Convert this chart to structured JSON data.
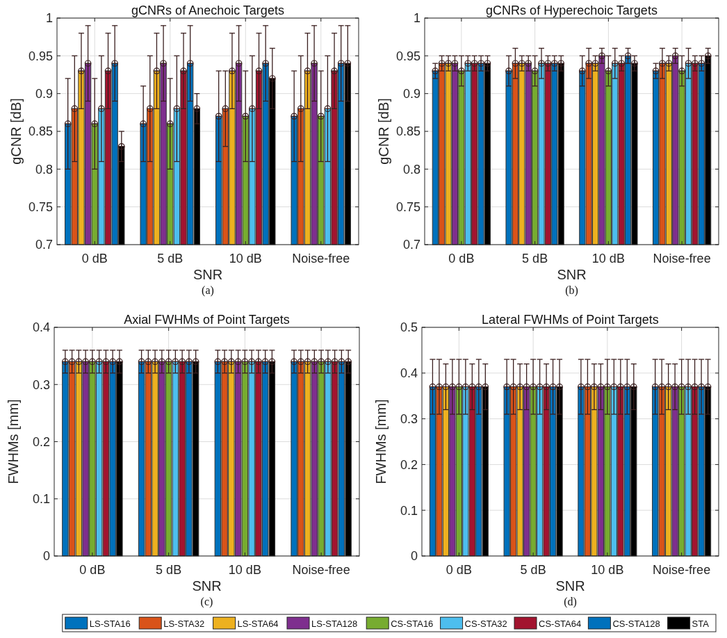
{
  "chart_data": [
    {
      "type": "bar",
      "title": "gCNRs of Anechoic Targets",
      "xlabel": "SNR",
      "ylabel": "gCNR [dB]",
      "annotations": [
        "(a)"
      ],
      "categories": [
        "0 dB",
        "5 dB",
        "10 dB",
        "Noise-free"
      ],
      "ylim": [
        0.7,
        1
      ],
      "yticks": [
        0.7,
        0.75,
        0.8,
        0.85,
        0.9,
        0.95,
        1
      ],
      "grid": true,
      "legend": "bottom",
      "marker": "circle",
      "series": [
        {
          "name": "LS-STA16",
          "color": "#0072bd",
          "values": [
            0.86,
            0.86,
            0.87,
            0.87
          ],
          "errors": [
            [
              0.8,
              0.92
            ],
            [
              0.81,
              0.91
            ],
            [
              0.81,
              0.93
            ],
            [
              0.81,
              0.93
            ]
          ]
        },
        {
          "name": "LS-STA32",
          "color": "#d95319",
          "values": [
            0.88,
            0.88,
            0.88,
            0.88
          ],
          "errors": [
            [
              0.81,
              0.95
            ],
            [
              0.81,
              0.95
            ],
            [
              0.83,
              0.93
            ],
            [
              0.81,
              0.95
            ]
          ]
        },
        {
          "name": "LS-STA64",
          "color": "#edb120",
          "values": [
            0.93,
            0.93,
            0.93,
            0.93
          ],
          "errors": [
            [
              0.88,
              0.98
            ],
            [
              0.88,
              0.98
            ],
            [
              0.88,
              0.98
            ],
            [
              0.88,
              0.98
            ]
          ]
        },
        {
          "name": "LS-STA128",
          "color": "#7e2f8e",
          "values": [
            0.94,
            0.94,
            0.94,
            0.94
          ],
          "errors": [
            [
              0.89,
              0.99
            ],
            [
              0.89,
              0.99
            ],
            [
              0.89,
              0.99
            ],
            [
              0.89,
              0.99
            ]
          ]
        },
        {
          "name": "CS-STA16",
          "color": "#77ac30",
          "values": [
            0.86,
            0.86,
            0.87,
            0.87
          ],
          "errors": [
            [
              0.8,
              0.92
            ],
            [
              0.8,
              0.92
            ],
            [
              0.81,
              0.93
            ],
            [
              0.81,
              0.93
            ]
          ]
        },
        {
          "name": "CS-STA32",
          "color": "#4dbeee",
          "values": [
            0.88,
            0.88,
            0.88,
            0.88
          ],
          "errors": [
            [
              0.81,
              0.95
            ],
            [
              0.81,
              0.95
            ],
            [
              0.81,
              0.95
            ],
            [
              0.81,
              0.95
            ]
          ]
        },
        {
          "name": "CS-STA64",
          "color": "#a2142f",
          "values": [
            0.93,
            0.93,
            0.93,
            0.93
          ],
          "errors": [
            [
              0.88,
              0.98
            ],
            [
              0.88,
              0.98
            ],
            [
              0.88,
              0.98
            ],
            [
              0.88,
              0.98
            ]
          ]
        },
        {
          "name": "CS-STA128",
          "color": "#0071bc",
          "values": [
            0.94,
            0.94,
            0.94,
            0.94
          ],
          "errors": [
            [
              0.89,
              0.99
            ],
            [
              0.89,
              0.99
            ],
            [
              0.89,
              0.99
            ],
            [
              0.89,
              0.99
            ]
          ]
        },
        {
          "name": "STA",
          "color": "#000000",
          "values": [
            0.83,
            0.88,
            0.92,
            0.94
          ],
          "errors": [
            [
              0.81,
              0.85
            ],
            [
              0.86,
              0.9
            ],
            [
              0.88,
              0.96
            ],
            [
              0.89,
              0.99
            ]
          ]
        }
      ]
    },
    {
      "type": "bar",
      "title": "gCNRs of Hyperechoic Targets",
      "xlabel": "SNR",
      "ylabel": "gCNR [dB]",
      "annotations": [
        "(b)"
      ],
      "categories": [
        "0 dB",
        "5 dB",
        "10 dB",
        "Noise-free"
      ],
      "ylim": [
        0.7,
        1
      ],
      "yticks": [
        0.7,
        0.75,
        0.8,
        0.85,
        0.9,
        0.95,
        1
      ],
      "grid": true,
      "legend": "bottom",
      "marker": "circle",
      "series": [
        {
          "name": "LS-STA16",
          "color": "#0072bd",
          "values": [
            0.93,
            0.93,
            0.93,
            0.93
          ],
          "errors": [
            [
              0.92,
              0.94
            ],
            [
              0.91,
              0.95
            ],
            [
              0.91,
              0.95
            ],
            [
              0.92,
              0.94
            ]
          ]
        },
        {
          "name": "LS-STA32",
          "color": "#d95319",
          "values": [
            0.94,
            0.94,
            0.94,
            0.94
          ],
          "errors": [
            [
              0.93,
              0.95
            ],
            [
              0.92,
              0.96
            ],
            [
              0.92,
              0.96
            ],
            [
              0.92,
              0.96
            ]
          ]
        },
        {
          "name": "LS-STA64",
          "color": "#edb120",
          "values": [
            0.94,
            0.94,
            0.94,
            0.94
          ],
          "errors": [
            [
              0.93,
              0.95
            ],
            [
              0.93,
              0.95
            ],
            [
              0.93,
              0.95
            ],
            [
              0.93,
              0.95
            ]
          ]
        },
        {
          "name": "LS-STA128",
          "color": "#7e2f8e",
          "values": [
            0.94,
            0.94,
            0.95,
            0.95
          ],
          "errors": [
            [
              0.93,
              0.95
            ],
            [
              0.93,
              0.95
            ],
            [
              0.94,
              0.96
            ],
            [
              0.94,
              0.96
            ]
          ]
        },
        {
          "name": "CS-STA16",
          "color": "#77ac30",
          "values": [
            0.93,
            0.93,
            0.93,
            0.93
          ],
          "errors": [
            [
              0.91,
              0.95
            ],
            [
              0.91,
              0.95
            ],
            [
              0.91,
              0.95
            ],
            [
              0.91,
              0.95
            ]
          ]
        },
        {
          "name": "CS-STA32",
          "color": "#4dbeee",
          "values": [
            0.94,
            0.94,
            0.94,
            0.94
          ],
          "errors": [
            [
              0.93,
              0.95
            ],
            [
              0.92,
              0.96
            ],
            [
              0.92,
              0.96
            ],
            [
              0.92,
              0.96
            ]
          ]
        },
        {
          "name": "CS-STA64",
          "color": "#a2142f",
          "values": [
            0.94,
            0.94,
            0.94,
            0.94
          ],
          "errors": [
            [
              0.93,
              0.95
            ],
            [
              0.93,
              0.95
            ],
            [
              0.93,
              0.95
            ],
            [
              0.93,
              0.95
            ]
          ]
        },
        {
          "name": "CS-STA128",
          "color": "#0071bc",
          "values": [
            0.94,
            0.94,
            0.95,
            0.94
          ],
          "errors": [
            [
              0.93,
              0.95
            ],
            [
              0.93,
              0.95
            ],
            [
              0.94,
              0.96
            ],
            [
              0.93,
              0.95
            ]
          ]
        },
        {
          "name": "STA",
          "color": "#000000",
          "values": [
            0.94,
            0.94,
            0.94,
            0.95
          ],
          "errors": [
            [
              0.93,
              0.95
            ],
            [
              0.93,
              0.95
            ],
            [
              0.93,
              0.95
            ],
            [
              0.94,
              0.96
            ]
          ]
        }
      ]
    },
    {
      "type": "bar",
      "title": "Axial FWHMs of Point Targets",
      "xlabel": "SNR",
      "ylabel": "FWHMs [mm]",
      "annotations": [
        "(c)"
      ],
      "categories": [
        "0 dB",
        "5 dB",
        "10 dB",
        "Noise-free"
      ],
      "ylim": [
        0,
        0.4
      ],
      "yticks": [
        0,
        0.1,
        0.2,
        0.3,
        0.4
      ],
      "grid": true,
      "legend": "bottom",
      "marker": "circle",
      "series": [
        {
          "name": "LS-STA16",
          "color": "#0072bd",
          "values": [
            0.34,
            0.34,
            0.34,
            0.34
          ],
          "errors": [
            0.02,
            0.02,
            0.02,
            0.02
          ]
        },
        {
          "name": "LS-STA32",
          "color": "#d95319",
          "values": [
            0.34,
            0.34,
            0.34,
            0.34
          ],
          "errors": [
            0.02,
            0.02,
            0.02,
            0.02
          ]
        },
        {
          "name": "LS-STA64",
          "color": "#edb120",
          "values": [
            0.34,
            0.34,
            0.34,
            0.34
          ],
          "errors": [
            0.02,
            0.02,
            0.02,
            0.02
          ]
        },
        {
          "name": "LS-STA128",
          "color": "#7e2f8e",
          "values": [
            0.34,
            0.34,
            0.34,
            0.34
          ],
          "errors": [
            0.02,
            0.02,
            0.02,
            0.02
          ]
        },
        {
          "name": "CS-STA16",
          "color": "#77ac30",
          "values": [
            0.34,
            0.34,
            0.34,
            0.34
          ],
          "errors": [
            0.02,
            0.02,
            0.02,
            0.02
          ]
        },
        {
          "name": "CS-STA32",
          "color": "#4dbeee",
          "values": [
            0.34,
            0.34,
            0.34,
            0.34
          ],
          "errors": [
            0.02,
            0.02,
            0.02,
            0.02
          ]
        },
        {
          "name": "CS-STA64",
          "color": "#a2142f",
          "values": [
            0.34,
            0.34,
            0.34,
            0.34
          ],
          "errors": [
            0.02,
            0.02,
            0.02,
            0.02
          ]
        },
        {
          "name": "CS-STA128",
          "color": "#0071bc",
          "values": [
            0.34,
            0.34,
            0.34,
            0.34
          ],
          "errors": [
            0.02,
            0.02,
            0.02,
            0.02
          ]
        },
        {
          "name": "STA",
          "color": "#000000",
          "values": [
            0.34,
            0.34,
            0.34,
            0.34
          ],
          "errors": [
            0.02,
            0.02,
            0.02,
            0.02
          ]
        }
      ]
    },
    {
      "type": "bar",
      "title": "Lateral FWHMs of Point Targets",
      "xlabel": "SNR",
      "ylabel": "FWHMs [mm]",
      "annotations": [
        "(d)"
      ],
      "categories": [
        "0 dB",
        "5 dB",
        "10 dB",
        "Noise-free"
      ],
      "ylim": [
        0,
        0.5
      ],
      "yticks": [
        0,
        0.1,
        0.2,
        0.3,
        0.4,
        0.5
      ],
      "grid": true,
      "legend": "bottom",
      "marker": "circle",
      "series": [
        {
          "name": "LS-STA16",
          "color": "#0072bd",
          "values": [
            0.37,
            0.37,
            0.37,
            0.37
          ],
          "errors": [
            [
              0.31,
              0.43
            ],
            [
              0.31,
              0.43
            ],
            [
              0.31,
              0.43
            ],
            [
              0.31,
              0.43
            ]
          ]
        },
        {
          "name": "LS-STA32",
          "color": "#d95319",
          "values": [
            0.37,
            0.37,
            0.37,
            0.37
          ],
          "errors": [
            [
              0.31,
              0.43
            ],
            [
              0.31,
              0.43
            ],
            [
              0.31,
              0.43
            ],
            [
              0.31,
              0.43
            ]
          ]
        },
        {
          "name": "LS-STA64",
          "color": "#edb120",
          "values": [
            0.37,
            0.37,
            0.37,
            0.37
          ],
          "errors": [
            [
              0.32,
              0.42
            ],
            [
              0.32,
              0.42
            ],
            [
              0.32,
              0.42
            ],
            [
              0.32,
              0.42
            ]
          ]
        },
        {
          "name": "LS-STA128",
          "color": "#7e2f8e",
          "values": [
            0.37,
            0.37,
            0.37,
            0.37
          ],
          "errors": [
            [
              0.31,
              0.43
            ],
            [
              0.32,
              0.42
            ],
            [
              0.32,
              0.42
            ],
            [
              0.32,
              0.42
            ]
          ]
        },
        {
          "name": "CS-STA16",
          "color": "#77ac30",
          "values": [
            0.37,
            0.37,
            0.37,
            0.37
          ],
          "errors": [
            [
              0.31,
              0.43
            ],
            [
              0.31,
              0.43
            ],
            [
              0.31,
              0.43
            ],
            [
              0.31,
              0.43
            ]
          ]
        },
        {
          "name": "CS-STA32",
          "color": "#4dbeee",
          "values": [
            0.37,
            0.37,
            0.37,
            0.37
          ],
          "errors": [
            [
              0.31,
              0.43
            ],
            [
              0.31,
              0.43
            ],
            [
              0.31,
              0.43
            ],
            [
              0.31,
              0.43
            ]
          ]
        },
        {
          "name": "CS-STA64",
          "color": "#a2142f",
          "values": [
            0.37,
            0.37,
            0.37,
            0.37
          ],
          "errors": [
            [
              0.32,
              0.42
            ],
            [
              0.32,
              0.42
            ],
            [
              0.31,
              0.43
            ],
            [
              0.31,
              0.43
            ]
          ]
        },
        {
          "name": "CS-STA128",
          "color": "#0071bc",
          "values": [
            0.37,
            0.37,
            0.37,
            0.37
          ],
          "errors": [
            [
              0.31,
              0.43
            ],
            [
              0.31,
              0.43
            ],
            [
              0.31,
              0.43
            ],
            [
              0.31,
              0.43
            ]
          ]
        },
        {
          "name": "STA",
          "color": "#000000",
          "values": [
            0.37,
            0.37,
            0.37,
            0.37
          ],
          "errors": [
            [
              0.32,
              0.42
            ],
            [
              0.31,
              0.43
            ],
            [
              0.32,
              0.42
            ],
            [
              0.31,
              0.43
            ]
          ]
        }
      ]
    }
  ]
}
